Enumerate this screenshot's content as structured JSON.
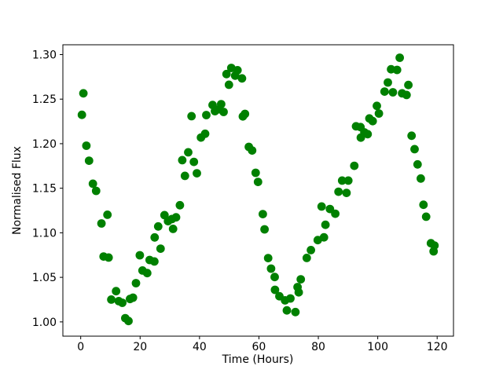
{
  "figure": {
    "background": "#ffffff"
  },
  "chart_data": {
    "type": "scatter",
    "title": "",
    "xlabel": "Time (Hours)",
    "ylabel": "Normalised Flux",
    "legend": null,
    "grid": false,
    "marker": "circle",
    "marker_color": "#008000",
    "axis_color": "#000000",
    "xlim": [
      -6.0,
      125.5
    ],
    "ylim": [
      0.984,
      1.311
    ],
    "xticks": [
      0,
      20,
      40,
      60,
      80,
      100,
      120
    ],
    "xtick_labels": [
      "0",
      "20",
      "40",
      "60",
      "80",
      "100",
      "120"
    ],
    "yticks": [
      1.0,
      1.05,
      1.1,
      1.15,
      1.2,
      1.25,
      1.3
    ],
    "ytick_labels": [
      "1.00",
      "1.05",
      "1.10",
      "1.15",
      "1.20",
      "1.25",
      "1.30"
    ],
    "points": [
      [
        0.4,
        1.2324
      ],
      [
        0.9,
        1.2565
      ],
      [
        1.9,
        1.1977
      ],
      [
        2.8,
        1.1809
      ],
      [
        4.1,
        1.1551
      ],
      [
        5.2,
        1.1471
      ],
      [
        7.0,
        1.1105
      ],
      [
        7.7,
        1.0734
      ],
      [
        9.0,
        1.1203
      ],
      [
        9.4,
        1.0722
      ],
      [
        10.3,
        1.0251
      ],
      [
        11.9,
        1.0345
      ],
      [
        12.8,
        1.0233
      ],
      [
        14.0,
        1.0215
      ],
      [
        15.0,
        1.0042
      ],
      [
        16.1,
        1.001
      ],
      [
        16.6,
        1.0257
      ],
      [
        17.6,
        1.0272
      ],
      [
        18.6,
        1.0435
      ],
      [
        19.9,
        1.0748
      ],
      [
        20.8,
        1.0577
      ],
      [
        22.4,
        1.0548
      ],
      [
        23.2,
        1.0695
      ],
      [
        24.8,
        1.0678
      ],
      [
        24.9,
        1.0948
      ],
      [
        26.1,
        1.1071
      ],
      [
        26.9,
        1.0822
      ],
      [
        28.2,
        1.1198
      ],
      [
        29.4,
        1.113
      ],
      [
        30.7,
        1.1154
      ],
      [
        31.1,
        1.1044
      ],
      [
        32.1,
        1.1174
      ],
      [
        33.4,
        1.1309
      ],
      [
        34.2,
        1.1815
      ],
      [
        35.1,
        1.1639
      ],
      [
        36.2,
        1.1903
      ],
      [
        37.3,
        1.2309
      ],
      [
        38.1,
        1.1796
      ],
      [
        39.1,
        1.1668
      ],
      [
        40.5,
        1.2069
      ],
      [
        41.9,
        1.2111
      ],
      [
        42.3,
        1.2321
      ],
      [
        44.4,
        1.2434
      ],
      [
        45.2,
        1.2365
      ],
      [
        46.5,
        1.2386
      ],
      [
        47.3,
        1.2444
      ],
      [
        48.1,
        1.2356
      ],
      [
        49.1,
        1.2781
      ],
      [
        49.9,
        1.2661
      ],
      [
        50.7,
        1.285
      ],
      [
        52.0,
        1.2764
      ],
      [
        52.8,
        1.2824
      ],
      [
        54.3,
        1.2733
      ],
      [
        54.6,
        1.2306
      ],
      [
        55.3,
        1.2334
      ],
      [
        56.6,
        1.1964
      ],
      [
        57.7,
        1.1924
      ],
      [
        58.9,
        1.1673
      ],
      [
        59.7,
        1.1571
      ],
      [
        61.3,
        1.121
      ],
      [
        61.9,
        1.1039
      ],
      [
        63.1,
        1.0716
      ],
      [
        64.1,
        1.0598
      ],
      [
        65.3,
        1.0504
      ],
      [
        65.4,
        1.036
      ],
      [
        66.9,
        1.0288
      ],
      [
        68.8,
        1.0242
      ],
      [
        69.4,
        1.0129
      ],
      [
        70.6,
        1.0263
      ],
      [
        72.3,
        1.0111
      ],
      [
        73.0,
        1.0391
      ],
      [
        73.4,
        1.0332
      ],
      [
        74.1,
        1.0478
      ],
      [
        76.1,
        1.0718
      ],
      [
        77.5,
        1.0806
      ],
      [
        79.8,
        1.0918
      ],
      [
        81.1,
        1.1295
      ],
      [
        81.9,
        1.0949
      ],
      [
        82.4,
        1.109
      ],
      [
        83.9,
        1.1267
      ],
      [
        85.7,
        1.1214
      ],
      [
        86.8,
        1.1461
      ],
      [
        88.0,
        1.1586
      ],
      [
        89.5,
        1.1448
      ],
      [
        90.1,
        1.1586
      ],
      [
        92.1,
        1.1752
      ],
      [
        92.7,
        1.2195
      ],
      [
        94.2,
        1.2186
      ],
      [
        94.3,
        1.2068
      ],
      [
        95.5,
        1.2127
      ],
      [
        96.6,
        1.2107
      ],
      [
        97.2,
        1.2283
      ],
      [
        98.3,
        1.2253
      ],
      [
        99.7,
        1.2424
      ],
      [
        100.4,
        1.2339
      ],
      [
        102.3,
        1.2585
      ],
      [
        103.4,
        1.2687
      ],
      [
        104.5,
        1.2835
      ],
      [
        105.1,
        1.2577
      ],
      [
        106.5,
        1.2828
      ],
      [
        107.4,
        1.2965
      ],
      [
        108.2,
        1.2565
      ],
      [
        109.7,
        1.2547
      ],
      [
        110.3,
        1.2659
      ],
      [
        111.4,
        1.2089
      ],
      [
        112.4,
        1.1939
      ],
      [
        113.4,
        1.1768
      ],
      [
        114.5,
        1.1609
      ],
      [
        115.4,
        1.1315
      ],
      [
        116.3,
        1.1181
      ],
      [
        117.9,
        1.0883
      ],
      [
        118.8,
        1.0792
      ],
      [
        119.1,
        1.0857
      ]
    ]
  }
}
